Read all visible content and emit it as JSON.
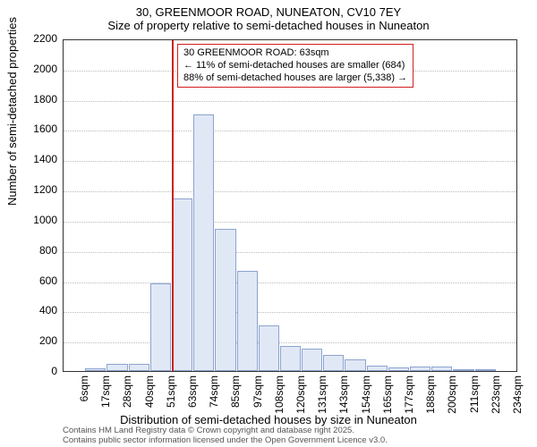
{
  "title_main": "30, GREENMOOR ROAD, NUNEATON, CV10 7EY",
  "title_sub": "Size of property relative to semi-detached houses in Nuneaton",
  "ylabel": "Number of semi-detached properties",
  "xlabel": "Distribution of semi-detached houses by size in Nuneaton",
  "chart": {
    "type": "histogram",
    "ylim": [
      0,
      2200
    ],
    "ytick_step": 200,
    "yticks": [
      0,
      200,
      400,
      600,
      800,
      1000,
      1200,
      1400,
      1600,
      1800,
      2000,
      2200
    ],
    "x_categories": [
      "6sqm",
      "17sqm",
      "28sqm",
      "40sqm",
      "51sqm",
      "63sqm",
      "74sqm",
      "85sqm",
      "97sqm",
      "108sqm",
      "120sqm",
      "131sqm",
      "143sqm",
      "154sqm",
      "165sqm",
      "177sqm",
      "188sqm",
      "200sqm",
      "211sqm",
      "223sqm",
      "234sqm"
    ],
    "values": [
      0,
      15,
      45,
      45,
      580,
      1140,
      1695,
      940,
      660,
      300,
      165,
      145,
      105,
      75,
      35,
      25,
      30,
      30,
      10,
      5,
      0
    ],
    "bar_fill": "#e1e8f5",
    "bar_stroke": "#8ca3cf",
    "grid_color": "#bbbbbb",
    "background_color": "#ffffff",
    "border_color": "#333333",
    "marker_color": "#d01f1f",
    "marker_index": 5,
    "annotation": {
      "line1": "30 GREENMOOR ROAD: 63sqm",
      "line2": "← 11% of semi-detached houses are smaller (684)",
      "line3": "88% of semi-detached houses are larger (5,338) →"
    }
  },
  "attribution": {
    "line1": "Contains HM Land Registry data © Crown copyright and database right 2025.",
    "line2": "Contains public sector information licensed under the Open Government Licence v3.0."
  }
}
